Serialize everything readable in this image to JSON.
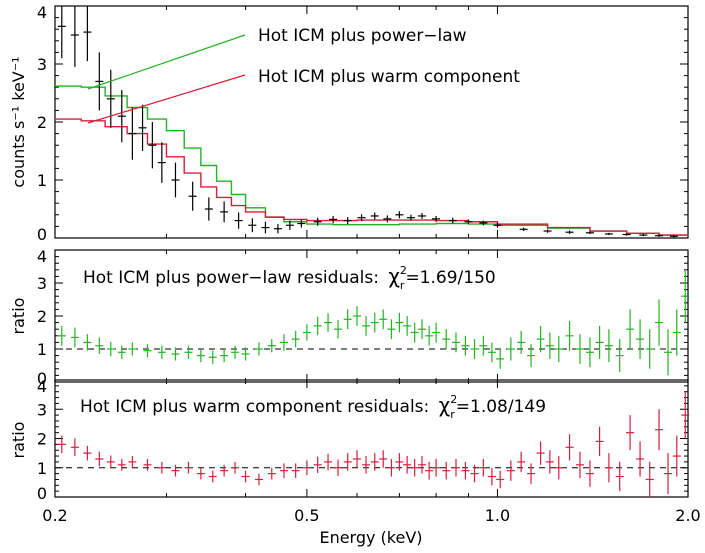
{
  "chart_data": [
    {
      "type": "line",
      "panel": "spectrum",
      "ylabel": "counts s⁻¹ keV⁻¹",
      "yticks": [
        "0",
        "1",
        "2",
        "3",
        "4"
      ],
      "ylim": [
        0,
        4
      ],
      "xscale": "log",
      "xlim": [
        0.2,
        2.0
      ],
      "legend_placement": "top-right",
      "series": [
        {
          "name": "Hot ICM plus power−law",
          "color": "#22b422",
          "x": [
            0.2,
            0.22,
            0.24,
            0.26,
            0.28,
            0.3,
            0.32,
            0.34,
            0.36,
            0.38,
            0.4,
            0.43,
            0.46,
            0.5,
            0.55,
            0.6,
            0.7,
            0.8,
            0.9,
            1.0,
            1.2,
            1.4,
            1.6,
            1.8,
            2.0
          ],
          "y": [
            2.62,
            2.6,
            2.45,
            2.25,
            2.05,
            1.85,
            1.55,
            1.25,
            0.98,
            0.75,
            0.52,
            0.36,
            0.28,
            0.24,
            0.23,
            0.23,
            0.24,
            0.25,
            0.24,
            0.22,
            0.17,
            0.12,
            0.08,
            0.05,
            0.03
          ]
        },
        {
          "name": "Hot ICM plus warm component",
          "color": "#d81e3c",
          "x": [
            0.2,
            0.22,
            0.24,
            0.26,
            0.28,
            0.3,
            0.32,
            0.34,
            0.36,
            0.38,
            0.4,
            0.43,
            0.46,
            0.5,
            0.55,
            0.6,
            0.7,
            0.8,
            0.9,
            1.0,
            1.2,
            1.4,
            1.6,
            1.8,
            2.0
          ],
          "y": [
            2.05,
            2.02,
            1.92,
            1.8,
            1.62,
            1.4,
            1.12,
            0.88,
            0.7,
            0.56,
            0.45,
            0.36,
            0.32,
            0.3,
            0.3,
            0.31,
            0.31,
            0.3,
            0.28,
            0.24,
            0.18,
            0.12,
            0.08,
            0.05,
            0.03
          ]
        },
        {
          "name": "data",
          "color": "#000000",
          "x": [
            0.205,
            0.215,
            0.225,
            0.235,
            0.245,
            0.255,
            0.265,
            0.275,
            0.285,
            0.295,
            0.31,
            0.33,
            0.35,
            0.37,
            0.39,
            0.41,
            0.43,
            0.45,
            0.47,
            0.49,
            0.52,
            0.55,
            0.58,
            0.61,
            0.64,
            0.67,
            0.7,
            0.73,
            0.76,
            0.8,
            0.85,
            0.9,
            0.95,
            1.0,
            1.1,
            1.2,
            1.3,
            1.4,
            1.5,
            1.6,
            1.7,
            1.8,
            1.9
          ],
          "y": [
            3.65,
            3.5,
            3.55,
            2.7,
            2.4,
            2.1,
            1.8,
            1.9,
            1.6,
            1.3,
            1.0,
            0.72,
            0.5,
            0.45,
            0.3,
            0.22,
            0.18,
            0.16,
            0.22,
            0.25,
            0.28,
            0.32,
            0.3,
            0.35,
            0.38,
            0.33,
            0.4,
            0.35,
            0.38,
            0.33,
            0.3,
            0.28,
            0.26,
            0.22,
            0.15,
            0.12,
            0.1,
            0.09,
            0.07,
            0.06,
            0.05,
            0.04,
            0.03
          ],
          "err": [
            0.55,
            0.55,
            0.5,
            0.5,
            0.5,
            0.45,
            0.45,
            0.4,
            0.4,
            0.35,
            0.3,
            0.25,
            0.2,
            0.18,
            0.14,
            0.12,
            0.1,
            0.08,
            0.08,
            0.07,
            0.07,
            0.06,
            0.06,
            0.06,
            0.06,
            0.06,
            0.06,
            0.05,
            0.05,
            0.05,
            0.05,
            0.04,
            0.04,
            0.04,
            0.03,
            0.03,
            0.03,
            0.02,
            0.02,
            0.02,
            0.02,
            0.02,
            0.02
          ]
        }
      ]
    },
    {
      "type": "scatter",
      "panel": "residuals-powerlaw",
      "ylabel": "ratio",
      "yticks": [
        "0",
        "1",
        "2",
        "3",
        "4"
      ],
      "ylim": [
        0,
        4
      ],
      "xscale": "log",
      "xlim": [
        0.2,
        2.0
      ],
      "reference_line": 1,
      "annotation": {
        "text": "Hot ICM plus power−law residuals:",
        "chi_symbol": "χ",
        "sup": "2",
        "sub": "r",
        "value": "=1.69/150"
      },
      "series": [
        {
          "name": "residuals",
          "color": "#22b422",
          "x": [
            0.205,
            0.215,
            0.225,
            0.235,
            0.245,
            0.255,
            0.265,
            0.28,
            0.295,
            0.31,
            0.325,
            0.34,
            0.355,
            0.37,
            0.385,
            0.4,
            0.42,
            0.44,
            0.46,
            0.48,
            0.5,
            0.52,
            0.54,
            0.56,
            0.58,
            0.6,
            0.62,
            0.64,
            0.66,
            0.68,
            0.7,
            0.72,
            0.74,
            0.76,
            0.78,
            0.8,
            0.83,
            0.86,
            0.89,
            0.92,
            0.95,
            0.98,
            1.01,
            1.05,
            1.09,
            1.13,
            1.17,
            1.21,
            1.25,
            1.3,
            1.35,
            1.4,
            1.45,
            1.5,
            1.56,
            1.62,
            1.68,
            1.74,
            1.8,
            1.86,
            1.92,
            1.98
          ],
          "y": [
            1.4,
            1.35,
            1.2,
            1.1,
            1.0,
            0.9,
            1.0,
            0.95,
            0.9,
            0.85,
            0.9,
            0.8,
            0.75,
            0.8,
            0.9,
            0.85,
            1.0,
            1.1,
            1.2,
            1.3,
            1.5,
            1.7,
            1.8,
            1.6,
            1.9,
            2.0,
            1.7,
            1.8,
            1.9,
            1.6,
            1.8,
            1.7,
            1.5,
            1.6,
            1.4,
            1.5,
            1.3,
            1.2,
            1.1,
            1.0,
            1.1,
            0.9,
            0.7,
            1.0,
            1.2,
            0.8,
            1.3,
            1.1,
            1.0,
            1.4,
            1.0,
            0.9,
            1.2,
            1.1,
            0.8,
            1.6,
            1.3,
            1.0,
            1.8,
            0.9,
            1.5,
            2.6
          ],
          "err": [
            0.3,
            0.3,
            0.25,
            0.25,
            0.22,
            0.2,
            0.2,
            0.2,
            0.2,
            0.2,
            0.2,
            0.2,
            0.2,
            0.2,
            0.2,
            0.2,
            0.2,
            0.2,
            0.25,
            0.25,
            0.25,
            0.28,
            0.28,
            0.28,
            0.3,
            0.3,
            0.3,
            0.3,
            0.3,
            0.3,
            0.3,
            0.3,
            0.3,
            0.3,
            0.3,
            0.3,
            0.3,
            0.3,
            0.3,
            0.3,
            0.3,
            0.3,
            0.3,
            0.35,
            0.35,
            0.35,
            0.4,
            0.4,
            0.4,
            0.45,
            0.45,
            0.45,
            0.5,
            0.5,
            0.5,
            0.6,
            0.6,
            0.6,
            0.7,
            0.7,
            0.7,
            0.8
          ]
        }
      ]
    },
    {
      "type": "scatter",
      "panel": "residuals-warm",
      "ylabel": "ratio",
      "yticks": [
        "0",
        "1",
        "2",
        "3",
        "4"
      ],
      "ylim": [
        0,
        4
      ],
      "xscale": "log",
      "xlim": [
        0.2,
        2.0
      ],
      "xlabel": "Energy (keV)",
      "xticks": [
        "0.2",
        "0.5",
        "1.0",
        "2.0"
      ],
      "xtick_values": [
        0.2,
        0.5,
        1.0,
        2.0
      ],
      "reference_line": 1,
      "annotation": {
        "text": "Hot ICM plus warm component residuals:",
        "chi_symbol": "χ",
        "sup": "2",
        "sub": "r",
        "value": "=1.08/149"
      },
      "series": [
        {
          "name": "residuals",
          "color": "#d81e3c",
          "x": [
            0.205,
            0.215,
            0.225,
            0.235,
            0.245,
            0.255,
            0.265,
            0.28,
            0.295,
            0.31,
            0.325,
            0.34,
            0.355,
            0.37,
            0.385,
            0.4,
            0.42,
            0.44,
            0.46,
            0.48,
            0.5,
            0.52,
            0.54,
            0.56,
            0.58,
            0.6,
            0.62,
            0.64,
            0.66,
            0.68,
            0.7,
            0.72,
            0.74,
            0.76,
            0.78,
            0.8,
            0.83,
            0.86,
            0.89,
            0.92,
            0.95,
            0.98,
            1.01,
            1.05,
            1.09,
            1.13,
            1.17,
            1.21,
            1.25,
            1.3,
            1.35,
            1.4,
            1.45,
            1.5,
            1.56,
            1.62,
            1.68,
            1.74,
            1.8,
            1.86,
            1.92,
            1.98
          ],
          "y": [
            1.8,
            1.7,
            1.5,
            1.3,
            1.2,
            1.1,
            1.2,
            1.1,
            1.0,
            0.9,
            1.0,
            0.8,
            0.7,
            0.9,
            1.0,
            0.7,
            0.6,
            0.8,
            0.9,
            0.9,
            1.0,
            1.1,
            1.2,
            1.0,
            1.2,
            1.3,
            1.1,
            1.2,
            1.3,
            1.0,
            1.2,
            1.1,
            1.0,
            1.1,
            0.9,
            1.0,
            0.9,
            1.0,
            0.9,
            0.8,
            1.0,
            0.7,
            0.6,
            0.9,
            1.2,
            0.8,
            1.5,
            1.2,
            1.0,
            1.7,
            1.1,
            0.8,
            1.9,
            1.0,
            0.7,
            2.2,
            1.3,
            0.6,
            2.3,
            0.8,
            1.4,
            2.8
          ],
          "err": [
            0.3,
            0.3,
            0.25,
            0.25,
            0.22,
            0.2,
            0.2,
            0.2,
            0.2,
            0.2,
            0.2,
            0.2,
            0.2,
            0.2,
            0.2,
            0.2,
            0.2,
            0.2,
            0.25,
            0.25,
            0.25,
            0.28,
            0.28,
            0.28,
            0.3,
            0.3,
            0.3,
            0.3,
            0.3,
            0.3,
            0.3,
            0.3,
            0.3,
            0.3,
            0.3,
            0.3,
            0.3,
            0.3,
            0.3,
            0.3,
            0.3,
            0.3,
            0.3,
            0.35,
            0.35,
            0.35,
            0.4,
            0.4,
            0.4,
            0.45,
            0.45,
            0.45,
            0.5,
            0.5,
            0.5,
            0.6,
            0.6,
            0.6,
            0.7,
            0.7,
            0.7,
            0.8
          ]
        }
      ]
    }
  ]
}
